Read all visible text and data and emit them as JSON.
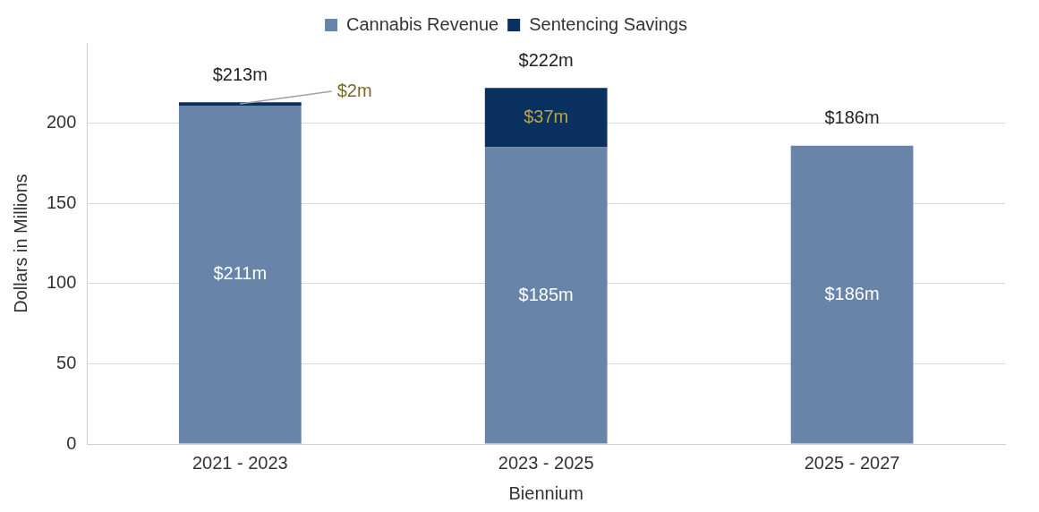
{
  "chart_data": {
    "type": "bar",
    "stacked": true,
    "xlabel": "Biennium",
    "ylabel": "Dollars in Millions",
    "categories": [
      "2021 - 2023",
      "2023 - 2025",
      "2025 - 2027"
    ],
    "series": [
      {
        "name": "Cannabis Revenue",
        "color": "#6884a8",
        "values": [
          211,
          185,
          186
        ],
        "value_labels": [
          "$211m",
          "$185m",
          "$186m"
        ]
      },
      {
        "name": "Sentencing Savings",
        "color": "#0a3060",
        "values": [
          2,
          37,
          null
        ],
        "value_labels": [
          "$2m",
          "$37m",
          null
        ]
      }
    ],
    "totals": [
      "$213m",
      "$222m",
      "$186m"
    ],
    "ylim": [
      0,
      250
    ],
    "yticks": [
      0,
      50,
      100,
      150,
      200
    ],
    "grid": "y",
    "legend": "top"
  }
}
